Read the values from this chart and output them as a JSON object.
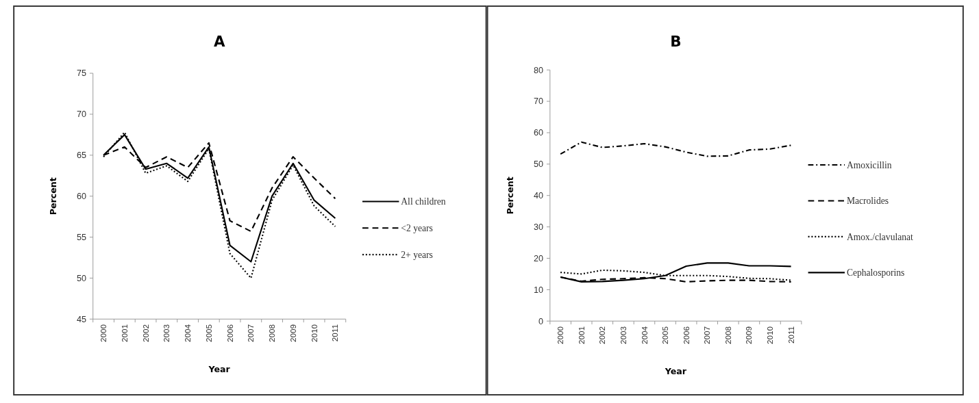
{
  "chart_data": [
    {
      "type": "line",
      "title": "A",
      "xlabel": "Year",
      "ylabel": "Percent",
      "categories": [
        "2000",
        "2001",
        "2002",
        "2003",
        "2004",
        "2005",
        "2006",
        "2007",
        "2008",
        "2009",
        "2010",
        "2011"
      ],
      "ylim": [
        45,
        75
      ],
      "yticks": [
        45,
        50,
        55,
        60,
        65,
        70,
        75
      ],
      "grid": false,
      "legend": "right",
      "marker": "none",
      "series": [
        {
          "name": "All children",
          "color": "#000000",
          "line_style": "solid",
          "values": [
            65,
            67.5,
            63.3,
            64,
            62.2,
            66,
            54,
            52,
            60,
            64,
            59.5,
            57.3
          ]
        },
        {
          "name": "<2 years",
          "color": "#000000",
          "line_style": "dashed",
          "values": [
            65,
            66,
            63.5,
            64.8,
            63.5,
            66.5,
            57,
            55.7,
            61,
            64.8,
            62.2,
            59.7
          ]
        },
        {
          "name": "2+ years",
          "color": "#000000",
          "line_style": "dotted",
          "values": [
            64.8,
            67.8,
            62.8,
            63.7,
            61.8,
            65.8,
            53,
            50,
            59.5,
            63.8,
            58.8,
            56.3
          ]
        }
      ]
    },
    {
      "type": "line",
      "title": "B",
      "xlabel": "Year",
      "ylabel": "Percent",
      "categories": [
        "2000",
        "2001",
        "2002",
        "2003",
        "2004",
        "2005",
        "2006",
        "2007",
        "2008",
        "2009",
        "2010",
        "2011"
      ],
      "ylim": [
        0,
        80
      ],
      "yticks": [
        0,
        10,
        20,
        30,
        40,
        50,
        60,
        70,
        80
      ],
      "grid": false,
      "legend": "right",
      "marker": "none",
      "series": [
        {
          "name": "Amoxicillin",
          "color": "#000000",
          "line_style": "dashdot",
          "values": [
            53.2,
            57,
            55.3,
            55.8,
            56.5,
            55.5,
            53.8,
            52.5,
            52.6,
            54.5,
            54.8,
            56
          ]
        },
        {
          "name": "Macrolides",
          "color": "#000000",
          "line_style": "dashed",
          "values": [
            14,
            12.7,
            13.3,
            13.5,
            13.8,
            13.5,
            12.5,
            12.8,
            13,
            13,
            12.6,
            12.5
          ]
        },
        {
          "name": "Amox./clavulanat",
          "color": "#000000",
          "line_style": "dotted",
          "values": [
            15.5,
            15,
            16.2,
            16,
            15.5,
            14.5,
            14.5,
            14.5,
            14.2,
            13.6,
            13.5,
            13
          ]
        },
        {
          "name": "Cephalosporins",
          "color": "#000000",
          "line_style": "solid",
          "values": [
            14,
            12.5,
            12.6,
            13,
            13.5,
            14.5,
            17.5,
            18.5,
            18.5,
            17.6,
            17.6,
            17.4
          ]
        }
      ]
    }
  ]
}
